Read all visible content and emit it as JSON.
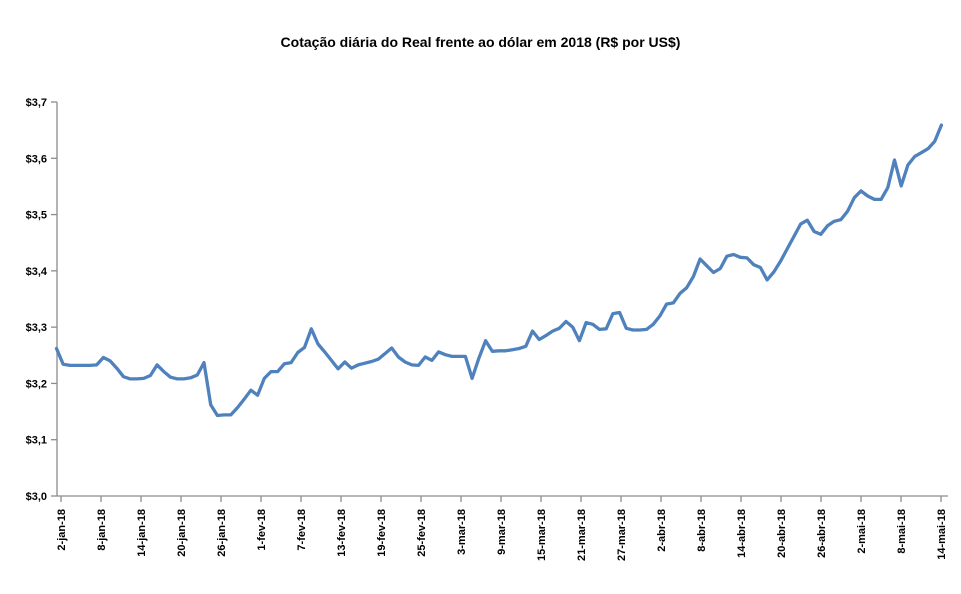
{
  "chart_data": {
    "type": "line",
    "title": "Cotação diária do Real frente ao dólar em 2018 (R$ por US$)",
    "grid": "off",
    "legend": "none",
    "line_color": "#4F81BD",
    "axis_color": "#8C8C8C",
    "text_color": "#000000",
    "background_color": "#FFFFFF",
    "y_axis": {
      "range": [
        3.0,
        3.7
      ],
      "tick_values": [
        3.7,
        3.6,
        3.5,
        3.4,
        3.3,
        3.2,
        3.1,
        3.0
      ],
      "tick_labels": [
        "$3,7",
        "$3,6",
        "$3,5",
        "$3,4",
        "$3,3",
        "$3,2",
        "$3,1",
        "$3,0"
      ]
    },
    "x_axis": {
      "tick_labels": [
        "2-jan-18",
        "8-jan-18",
        "14-jan-18",
        "20-jan-18",
        "26-jan-18",
        "1-fev-18",
        "7-fev-18",
        "13-fev-18",
        "19-fev-18",
        "25-fev-18",
        "3-mar-18",
        "9-mar-18",
        "15-mar-18",
        "21-mar-18",
        "27-mar-18",
        "2-abr-18",
        "8-abr-18",
        "14-abr-18",
        "20-abr-18",
        "26-abr-18",
        "2-mai-18",
        "8-mai-18",
        "14-mai-18"
      ]
    },
    "series": {
      "dates": [
        "2-jan-18",
        "3-jan-18",
        "4-jan-18",
        "5-jan-18",
        "6-jan-18",
        "7-jan-18",
        "8-jan-18",
        "9-jan-18",
        "10-jan-18",
        "11-jan-18",
        "12-jan-18",
        "13-jan-18",
        "14-jan-18",
        "15-jan-18",
        "16-jan-18",
        "17-jan-18",
        "18-jan-18",
        "19-jan-18",
        "20-jan-18",
        "21-jan-18",
        "22-jan-18",
        "23-jan-18",
        "24-jan-18",
        "25-jan-18",
        "26-jan-18",
        "27-jan-18",
        "28-jan-18",
        "29-jan-18",
        "30-jan-18",
        "31-jan-18",
        "1-fev-18",
        "2-fev-18",
        "3-fev-18",
        "4-fev-18",
        "5-fev-18",
        "6-fev-18",
        "7-fev-18",
        "8-fev-18",
        "9-fev-18",
        "10-fev-18",
        "11-fev-18",
        "12-fev-18",
        "13-fev-18",
        "14-fev-18",
        "15-fev-18",
        "16-fev-18",
        "17-fev-18",
        "18-fev-18",
        "19-fev-18",
        "20-fev-18",
        "21-fev-18",
        "22-fev-18",
        "23-fev-18",
        "24-fev-18",
        "25-fev-18",
        "26-fev-18",
        "27-fev-18",
        "28-fev-18",
        "1-mar-18",
        "2-mar-18",
        "3-mar-18",
        "4-mar-18",
        "5-mar-18",
        "6-mar-18",
        "7-mar-18",
        "8-mar-18",
        "9-mar-18",
        "10-mar-18",
        "11-mar-18",
        "12-mar-18",
        "13-mar-18",
        "14-mar-18",
        "15-mar-18",
        "16-mar-18",
        "17-mar-18",
        "18-mar-18",
        "19-mar-18",
        "20-mar-18",
        "21-mar-18",
        "22-mar-18",
        "23-mar-18",
        "24-mar-18",
        "25-mar-18",
        "26-mar-18",
        "27-mar-18",
        "28-mar-18",
        "29-mar-18",
        "30-mar-18",
        "31-mar-18",
        "1-abr-18",
        "2-abr-18",
        "3-abr-18",
        "4-abr-18",
        "5-abr-18",
        "6-abr-18",
        "7-abr-18",
        "8-abr-18",
        "9-abr-18",
        "10-abr-18",
        "11-abr-18",
        "12-abr-18",
        "13-abr-18",
        "14-abr-18",
        "15-abr-18",
        "16-abr-18",
        "17-abr-18",
        "18-abr-18",
        "19-abr-18",
        "20-abr-18",
        "21-abr-18",
        "22-abr-18",
        "23-abr-18",
        "24-abr-18",
        "25-abr-18",
        "26-abr-18",
        "27-abr-18",
        "28-abr-18",
        "29-abr-18",
        "30-abr-18",
        "1-mai-18",
        "2-mai-18",
        "3-mai-18",
        "4-mai-18",
        "5-mai-18",
        "6-mai-18",
        "7-mai-18",
        "8-mai-18",
        "9-mai-18",
        "10-mai-18",
        "11-mai-18",
        "12-mai-18",
        "13-mai-18",
        "14-mai-18"
      ],
      "values": [
        3.262,
        3.234,
        3.232,
        3.232,
        3.232,
        3.232,
        3.233,
        3.246,
        3.24,
        3.227,
        3.212,
        3.208,
        3.208,
        3.209,
        3.214,
        3.233,
        3.221,
        3.211,
        3.208,
        3.208,
        3.21,
        3.215,
        3.237,
        3.162,
        3.143,
        3.144,
        3.144,
        3.157,
        3.172,
        3.188,
        3.179,
        3.209,
        3.221,
        3.221,
        3.235,
        3.237,
        3.255,
        3.264,
        3.297,
        3.27,
        3.256,
        3.241,
        3.226,
        3.238,
        3.227,
        3.233,
        3.236,
        3.239,
        3.243,
        3.253,
        3.263,
        3.247,
        3.238,
        3.233,
        3.232,
        3.247,
        3.241,
        3.256,
        3.251,
        3.248,
        3.248,
        3.248,
        3.209,
        3.245,
        3.276,
        3.257,
        3.258,
        3.258,
        3.26,
        3.262,
        3.266,
        3.293,
        3.278,
        3.285,
        3.293,
        3.298,
        3.31,
        3.3,
        3.276,
        3.308,
        3.305,
        3.296,
        3.297,
        3.324,
        3.326,
        3.298,
        3.295,
        3.295,
        3.296,
        3.305,
        3.32,
        3.341,
        3.343,
        3.36,
        3.37,
        3.39,
        3.421,
        3.409,
        3.397,
        3.404,
        3.426,
        3.429,
        3.424,
        3.423,
        3.411,
        3.406,
        3.384,
        3.398,
        3.417,
        3.439,
        3.461,
        3.483,
        3.49,
        3.47,
        3.465,
        3.48,
        3.488,
        3.491,
        3.506,
        3.53,
        3.542,
        3.533,
        3.527,
        3.527,
        3.548,
        3.597,
        3.551,
        3.588,
        3.603,
        3.61,
        3.617,
        3.63,
        3.659
      ]
    }
  }
}
